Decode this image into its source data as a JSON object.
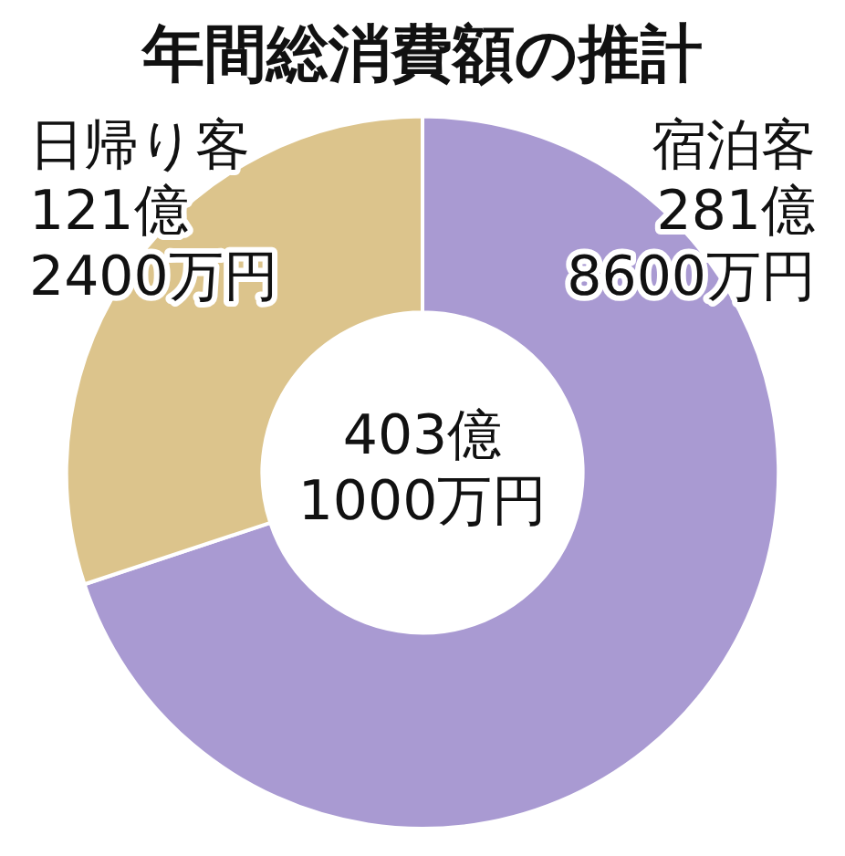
{
  "chart_data": {
    "type": "donut",
    "title": "年間総消費額の推計",
    "categories": [
      "宿泊客",
      "日帰り客"
    ],
    "values": [
      69.92,
      30.08
    ],
    "colors": [
      "#a99ad2",
      "#dcc48c"
    ],
    "annotations": [
      {
        "text": "281億\n8600万円",
        "x": "宿泊客"
      },
      {
        "text": "121億\n2400万円",
        "x": "日帰り客"
      },
      "403億\n1000万円"
    ],
    "legend": false
  }
}
